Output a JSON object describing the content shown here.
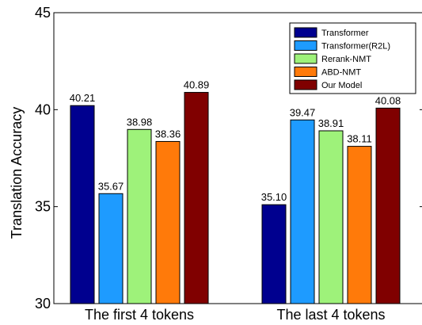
{
  "chart_data": {
    "type": "bar",
    "title": "",
    "xlabel": "",
    "ylabel": "Translation Accuracy",
    "ylim": [
      30,
      45
    ],
    "yticks": [
      "30",
      "35",
      "40",
      "45"
    ],
    "categories": [
      "The first 4 tokens",
      "The last 4 tokens"
    ],
    "legend_position": "top-right",
    "grid": false,
    "series": [
      {
        "name": "Transformer",
        "color": "#00008f",
        "values": [
          40.21,
          35.1
        ],
        "labels": [
          "40.21",
          "35.10"
        ]
      },
      {
        "name": "Transformer(R2L)",
        "color": "#1e9bff",
        "values": [
          35.67,
          39.47
        ],
        "labels": [
          "35.67",
          "39.47"
        ]
      },
      {
        "name": "Rerank-NMT",
        "color": "#9ef27a",
        "values": [
          38.98,
          38.91
        ],
        "labels": [
          "38.98",
          "38.91"
        ]
      },
      {
        "name": "ABD-NMT",
        "color": "#ff7a0a",
        "values": [
          38.36,
          38.11
        ],
        "labels": [
          "38.36",
          "38.11"
        ]
      },
      {
        "name": "Our Model",
        "color": "#800000",
        "values": [
          40.89,
          40.08
        ],
        "labels": [
          "40.89",
          "40.08"
        ]
      }
    ]
  }
}
